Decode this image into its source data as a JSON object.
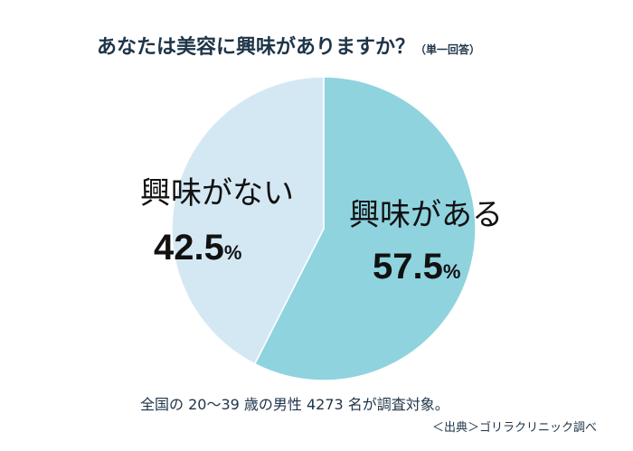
{
  "chart_data": {
    "type": "pie",
    "title": "あなたは美容に興味がありますか？",
    "subtitle": "（単一回答）",
    "slices": [
      {
        "label": "興味がある",
        "value": 57.5,
        "display": "57.5",
        "color": "#8fd3df"
      },
      {
        "label": "興味がない",
        "value": 42.5,
        "display": "42.5",
        "color": "#d4e8f4"
      }
    ],
    "unit": "%",
    "start_angle": "top",
    "direction": "clockwise"
  },
  "footer": {
    "note": "全国の 20〜39 歳の男性 4273 名が調査対象。",
    "source": "＜出典＞ゴリラクリニック調べ"
  }
}
